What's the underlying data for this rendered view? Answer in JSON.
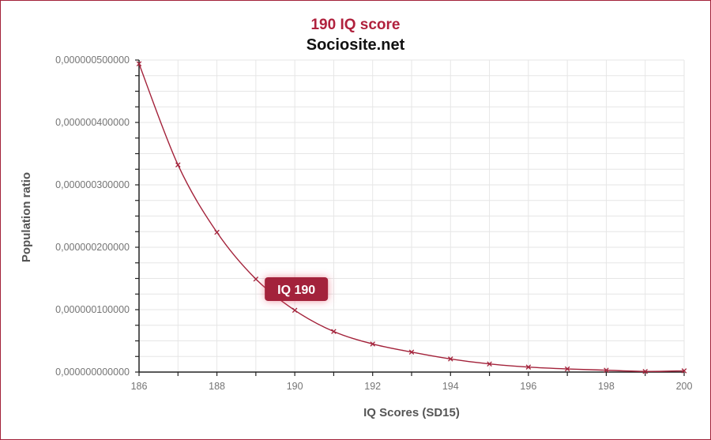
{
  "chart_data": {
    "type": "line",
    "title": "190 IQ score",
    "subtitle": "Sociosite.net",
    "xlabel": "IQ Scores (SD15)",
    "ylabel": "Population ratio",
    "xlim": [
      186,
      200
    ],
    "ylim": [
      0,
      5e-07
    ],
    "x_ticks": [
      "186",
      "188",
      "190",
      "192",
      "194",
      "196",
      "198",
      "200"
    ],
    "y_ticks": [
      "0,000000000000",
      "0,000000100000",
      "0,000000200000",
      "0,000000300000",
      "0,000000400000",
      "0,000000500000"
    ],
    "grid": true,
    "series": [
      {
        "color": "#a3223a",
        "x": [
          186,
          187,
          188,
          189,
          190,
          191,
          192,
          193,
          194,
          195,
          196,
          197,
          198,
          199,
          200
        ],
        "y": [
          4.94e-07,
          3.32e-07,
          2.24e-07,
          1.49e-07,
          9.9e-08,
          6.5e-08,
          4.5e-08,
          3.2e-08,
          2.1e-08,
          1.3e-08,
          8e-09,
          5e-09,
          3e-09,
          1e-09,
          2e-09
        ]
      }
    ],
    "highlight": {
      "label": "IQ 190",
      "x": 190,
      "y": 9.5e-08,
      "color": "#a3223a"
    }
  }
}
